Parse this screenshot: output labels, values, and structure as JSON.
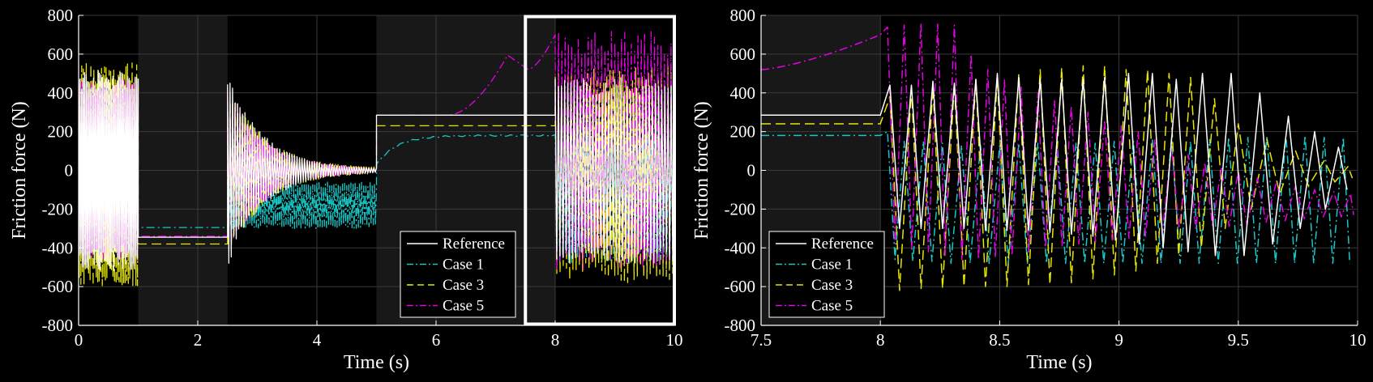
{
  "chart_data": [
    {
      "type": "line",
      "xlabel": "Time (s)",
      "ylabel": "Friction force (N)",
      "xlim": [
        0,
        10
      ],
      "ylim": [
        -800,
        800
      ],
      "xticks": [
        "0",
        "2",
        "4",
        "6",
        "8",
        "10"
      ],
      "yticks": [
        "-800",
        "-600",
        "-400",
        "-200",
        "0",
        "200",
        "400",
        "600",
        "800"
      ],
      "grid": true,
      "legend_position": "bottom-right",
      "shaded_intervals": [
        [
          1,
          2.5
        ],
        [
          5,
          8
        ]
      ],
      "zoom_box": {
        "x": [
          7.5,
          10
        ],
        "y": [
          -800,
          800
        ]
      },
      "series": [
        {
          "name": "Reference",
          "color": "#ffffff",
          "style": "solid",
          "segments": [
            {
              "kind": "oscillation",
              "t": [
                0,
                1
              ],
              "center": 0,
              "amplitude": 520,
              "cycles": 40
            },
            {
              "kind": "steady",
              "t": [
                1,
                2.5
              ],
              "value": -345
            },
            {
              "kind": "decay",
              "t": [
                2.5,
                5
              ],
              "center": 0,
              "amplitude": 500,
              "final": 5,
              "cycles": 60
            },
            {
              "kind": "steady",
              "t": [
                5,
                8
              ],
              "value": 285
            },
            {
              "kind": "oscillation",
              "t": [
                8,
                10
              ],
              "center": 0,
              "amplitude": 480,
              "cycles": 38
            }
          ]
        },
        {
          "name": "Case 1",
          "color": "#17c8c8",
          "style": "dashdot",
          "segments": [
            {
              "kind": "oscillation",
              "t": [
                0,
                1
              ],
              "center": -150,
              "amplitude": 300,
              "cycles": 41
            },
            {
              "kind": "steady",
              "t": [
                1,
                2.5
              ],
              "value": -295
            },
            {
              "kind": "oscillation",
              "t": [
                2.5,
                5
              ],
              "center": -180,
              "amplitude": 120,
              "cycles": 70
            },
            {
              "kind": "rise",
              "t": [
                5,
                8
              ],
              "from": 30,
              "to": 180
            },
            {
              "kind": "oscillation",
              "t": [
                8,
                10
              ],
              "center": -150,
              "amplitude": 330,
              "cycles": 40
            }
          ]
        },
        {
          "name": "Case 3",
          "color": "#e6e600",
          "style": "dashed",
          "segments": [
            {
              "kind": "oscillation",
              "t": [
                0,
                1
              ],
              "center": -20,
              "amplitude": 580,
              "cycles": 39
            },
            {
              "kind": "steady",
              "t": [
                1,
                2.5
              ],
              "value": -380
            },
            {
              "kind": "decay",
              "t": [
                2.5,
                5
              ],
              "center": 0,
              "amplitude": 480,
              "final": 10,
              "cycles": 58
            },
            {
              "kind": "steady",
              "t": [
                5,
                8
              ],
              "value": 230
            },
            {
              "kind": "oscillation",
              "t": [
                8,
                10
              ],
              "center": -20,
              "amplitude": 560,
              "cycles": 37
            }
          ]
        },
        {
          "name": "Case 5",
          "color": "#e600e6",
          "style": "dashdot",
          "segments": [
            {
              "kind": "oscillation",
              "t": [
                0,
                1
              ],
              "center": 0,
              "amplitude": 470,
              "cycles": 42
            },
            {
              "kind": "steady",
              "t": [
                1,
                2.5
              ],
              "value": -340
            },
            {
              "kind": "decay",
              "t": [
                2.5,
                5
              ],
              "center": 0,
              "amplitude": 450,
              "final": 5,
              "cycles": 62
            },
            {
              "kind": "hump",
              "t": [
                5,
                8
              ],
              "from": 285,
              "peak_t": 7.2,
              "peak": 595,
              "dip_t": 7.55,
              "dip": 520,
              "end": 700
            },
            {
              "kind": "oscillation",
              "t": [
                8,
                10
              ],
              "center": 100,
              "amplitude": 620,
              "cycles": 36
            }
          ]
        }
      ]
    },
    {
      "type": "line",
      "xlabel": "Time (s)",
      "ylabel": "Friction force (N)",
      "xlim": [
        7.5,
        10
      ],
      "ylim": [
        -800,
        800
      ],
      "xticks": [
        "7.5",
        "8",
        "8.5",
        "9",
        "9.5",
        "10"
      ],
      "yticks": [
        "-800",
        "-600",
        "-400",
        "-200",
        "0",
        "200",
        "400",
        "600",
        "800"
      ],
      "grid": true,
      "legend_position": "bottom-left",
      "shaded_intervals": [
        [
          7.5,
          8
        ]
      ],
      "series": [
        {
          "name": "Reference",
          "color": "#ffffff",
          "style": "solid",
          "pre_value": 285,
          "peaks": [
            [
              8.04,
              440
            ],
            [
              8.13,
              440
            ],
            [
              8.22,
              460
            ],
            [
              8.31,
              450
            ],
            [
              8.4,
              470
            ],
            [
              8.49,
              500
            ],
            [
              8.58,
              480
            ],
            [
              8.67,
              470
            ],
            [
              8.76,
              470
            ],
            [
              8.85,
              470
            ],
            [
              8.94,
              480
            ],
            [
              9.04,
              500
            ],
            [
              9.14,
              500
            ],
            [
              9.24,
              470
            ],
            [
              9.35,
              500
            ],
            [
              9.47,
              500
            ],
            [
              9.59,
              400
            ],
            [
              9.71,
              280
            ],
            [
              9.82,
              200
            ],
            [
              9.92,
              120
            ]
          ],
          "trough_values": [
            -300,
            -300,
            -300,
            -300,
            -310,
            -310,
            -310,
            -320,
            -330,
            -340,
            -360,
            -380,
            -400,
            -420,
            -440,
            -440,
            -380,
            -300,
            -200,
            -100
          ]
        },
        {
          "name": "Case 1",
          "color": "#17c8c8",
          "style": "dashdot",
          "pre_value": 180,
          "peaks": [
            [
              8.03,
              200
            ],
            [
              8.1,
              150
            ],
            [
              8.18,
              150
            ],
            [
              8.26,
              140
            ],
            [
              8.34,
              130
            ],
            [
              8.42,
              130
            ],
            [
              8.5,
              130
            ],
            [
              8.58,
              140
            ],
            [
              8.66,
              140
            ],
            [
              8.74,
              150
            ],
            [
              8.82,
              140
            ],
            [
              8.9,
              140
            ],
            [
              8.98,
              150
            ],
            [
              9.06,
              160
            ],
            [
              9.14,
              160
            ],
            [
              9.22,
              170
            ],
            [
              9.3,
              150
            ],
            [
              9.38,
              160
            ],
            [
              9.46,
              170
            ],
            [
              9.54,
              170
            ],
            [
              9.62,
              180
            ],
            [
              9.7,
              180
            ],
            [
              9.78,
              180
            ],
            [
              9.86,
              170
            ],
            [
              9.94,
              170
            ]
          ],
          "trough_values": [
            -460,
            -470,
            -470,
            -480,
            -480,
            -480,
            -480,
            -480,
            -480,
            -480,
            -480,
            -480,
            -480,
            -480,
            -480,
            -480,
            -480,
            -480,
            -480,
            -480,
            -480,
            -480,
            -480,
            -480,
            -480
          ]
        },
        {
          "name": "Case 3",
          "color": "#e6e600",
          "style": "dashed",
          "pre_value": 240,
          "peaks": [
            [
              8.04,
              380
            ],
            [
              8.13,
              420
            ],
            [
              8.22,
              430
            ],
            [
              8.31,
              450
            ],
            [
              8.4,
              470
            ],
            [
              8.49,
              480
            ],
            [
              8.58,
              500
            ],
            [
              8.67,
              520
            ],
            [
              8.76,
              530
            ],
            [
              8.85,
              540
            ],
            [
              8.94,
              540
            ],
            [
              9.03,
              520
            ],
            [
              9.12,
              520
            ],
            [
              9.21,
              500
            ],
            [
              9.3,
              480
            ],
            [
              9.4,
              370
            ],
            [
              9.5,
              240
            ],
            [
              9.62,
              160
            ],
            [
              9.74,
              100
            ],
            [
              9.86,
              50
            ],
            [
              9.96,
              20
            ]
          ],
          "trough_values": [
            -620,
            -610,
            -610,
            -600,
            -600,
            -600,
            -590,
            -590,
            -580,
            -560,
            -540,
            -520,
            -480,
            -440,
            -400,
            -300,
            -200,
            -120,
            -80,
            -60,
            -40
          ]
        },
        {
          "name": "Case 5",
          "color": "#e600e6",
          "style": "dashdot",
          "pre_rise": [
            520,
            700
          ],
          "peaks": [
            [
              8.03,
              740
            ],
            [
              8.1,
              750
            ],
            [
              8.17,
              760
            ],
            [
              8.24,
              755
            ],
            [
              8.31,
              750
            ],
            [
              8.38,
              600
            ],
            [
              8.45,
              520
            ],
            [
              8.52,
              470
            ],
            [
              8.59,
              430
            ],
            [
              8.66,
              400
            ],
            [
              8.73,
              360
            ],
            [
              8.8,
              330
            ],
            [
              8.87,
              300
            ],
            [
              8.94,
              260
            ],
            [
              9.01,
              230
            ],
            [
              9.08,
              200
            ],
            [
              9.15,
              160
            ],
            [
              9.22,
              120
            ],
            [
              9.29,
              80
            ],
            [
              9.36,
              40
            ],
            [
              9.43,
              20
            ],
            [
              9.5,
              0
            ],
            [
              9.58,
              -40
            ],
            [
              9.66,
              -60
            ],
            [
              9.74,
              -80
            ],
            [
              9.82,
              -100
            ],
            [
              9.9,
              -110
            ],
            [
              9.97,
              -120
            ]
          ],
          "trough_values": [
            -380,
            -400,
            -420,
            -440,
            -460,
            -460,
            -450,
            -440,
            -420,
            -400,
            -390,
            -380,
            -370,
            -360,
            -350,
            -340,
            -320,
            -300,
            -300,
            -290,
            -290,
            -280,
            -270,
            -260,
            -250,
            -240,
            -240,
            -230
          ]
        }
      ]
    }
  ]
}
